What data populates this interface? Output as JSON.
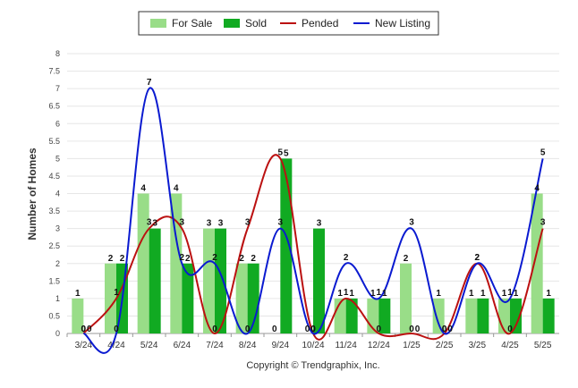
{
  "chart_data": {
    "type": "bar",
    "ylabel": "Number of Homes",
    "xlabel": "",
    "ylim": [
      0,
      8
    ],
    "yticks": [
      "0",
      "0.5",
      "1",
      "1.5",
      "2",
      "2.5",
      "3",
      "3.5",
      "4",
      "4.5",
      "5",
      "5.5",
      "6",
      "6.5",
      "7",
      "7.5",
      "8"
    ],
    "grid": true,
    "legend_position": "top-center",
    "categories": [
      "3/24",
      "4/24",
      "5/24",
      "6/24",
      "7/24",
      "8/24",
      "9/24",
      "10/24",
      "11/24",
      "12/24",
      "1/25",
      "2/25",
      "3/25",
      "4/25",
      "5/25"
    ],
    "series": [
      {
        "name": "For Sale",
        "kind": "bar",
        "color": "#99dd88",
        "values": [
          1,
          2,
          4,
          4,
          3,
          2,
          0,
          0,
          1,
          1,
          2,
          1,
          1,
          1,
          4
        ]
      },
      {
        "name": "Sold",
        "kind": "bar",
        "color": "#11aa22",
        "values": [
          0,
          2,
          3,
          2,
          3,
          2,
          5,
          3,
          1,
          1,
          0,
          0,
          1,
          1,
          1
        ]
      },
      {
        "name": "Pended",
        "kind": "line",
        "color": "#bb1111",
        "values": [
          0,
          1,
          3,
          3,
          0,
          3,
          5,
          0,
          1,
          0,
          0,
          0,
          2,
          0,
          3
        ]
      },
      {
        "name": "New Listing",
        "kind": "line",
        "color": "#0a1ad0",
        "values": [
          0,
          0,
          7,
          2,
          2,
          0,
          3,
          0,
          2,
          1,
          3,
          0,
          2,
          1,
          5
        ]
      }
    ],
    "footer": "Copyright © Trendgraphix, Inc."
  }
}
